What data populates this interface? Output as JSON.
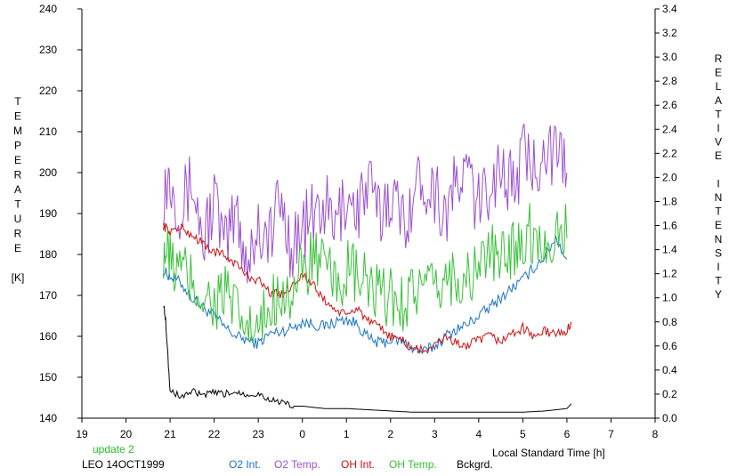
{
  "chart_data": {
    "type": "line",
    "title": "",
    "xlabel": "Local Standard Time [h]",
    "ylabel_left": [
      "T",
      "E",
      "M",
      "P",
      "E",
      "R",
      "A",
      "T",
      "U",
      "R",
      "E",
      "",
      "[K]"
    ],
    "ylabel_right": [
      "R",
      "E",
      "L",
      "A",
      "T",
      "I",
      "V",
      "E",
      "",
      "I",
      "N",
      "T",
      "E",
      "N",
      "S",
      "I",
      "T",
      "Y"
    ],
    "x_range": [
      19,
      32
    ],
    "x_ticks": [
      19,
      20,
      21,
      22,
      23,
      24,
      25,
      26,
      27,
      28,
      29,
      30,
      31,
      32
    ],
    "x_tick_labels": [
      "19",
      "20",
      "21",
      "22",
      "23",
      "0",
      "1",
      "2",
      "3",
      "4",
      "5",
      "6",
      "7",
      "8"
    ],
    "ylim_left": [
      140,
      240
    ],
    "y_left_ticks": [
      "140",
      "150",
      "160",
      "170",
      "180",
      "190",
      "200",
      "210",
      "220",
      "230",
      "240"
    ],
    "ylim_right": [
      0.0,
      3.4
    ],
    "y_right_ticks": [
      "0.0",
      "0.2",
      "0.4",
      "0.6",
      "0.8",
      "1.0",
      "1.2",
      "1.4",
      "1.6",
      "1.8",
      "2.0",
      "2.2",
      "2.4",
      "2.6",
      "2.8",
      "3.0",
      "3.2",
      "3.4"
    ],
    "grid": false,
    "legend_position": "bottom",
    "series": [
      {
        "name": "O2 Int.",
        "axis": "right",
        "color": "#1a73c8",
        "x": [
          20.85,
          21.0,
          21.25,
          21.5,
          21.75,
          22.0,
          22.25,
          22.5,
          22.75,
          23.0,
          23.25,
          23.5,
          23.75,
          24.0,
          24.25,
          24.5,
          24.75,
          25.0,
          25.25,
          25.5,
          25.75,
          26.0,
          26.25,
          26.5,
          26.75,
          27.0,
          27.25,
          27.5,
          27.75,
          28.0,
          28.25,
          28.5,
          28.75,
          29.0,
          29.25,
          29.5,
          29.75,
          30.0
        ],
        "y": [
          1.22,
          1.18,
          1.12,
          1.0,
          0.92,
          0.85,
          0.75,
          0.68,
          0.65,
          0.62,
          0.7,
          0.72,
          0.75,
          0.8,
          0.78,
          0.76,
          0.8,
          0.82,
          0.78,
          0.66,
          0.62,
          0.65,
          0.64,
          0.58,
          0.55,
          0.6,
          0.68,
          0.74,
          0.78,
          0.85,
          0.92,
          1.0,
          1.08,
          1.15,
          1.25,
          1.35,
          1.5,
          1.32
        ]
      },
      {
        "name": "O2 Temp.",
        "axis": "left",
        "color": "#9b4fd0",
        "x": [
          20.85,
          21.0,
          21.25,
          21.5,
          21.75,
          22.0,
          22.25,
          22.5,
          22.75,
          23.0,
          23.25,
          23.5,
          23.75,
          24.0,
          24.25,
          24.5,
          24.75,
          25.0,
          25.25,
          25.5,
          25.75,
          26.0,
          26.25,
          26.5,
          26.75,
          27.0,
          27.25,
          27.5,
          27.75,
          28.0,
          28.25,
          28.5,
          28.75,
          29.0,
          29.25,
          29.5,
          29.75,
          30.0
        ],
        "y": [
          196,
          200,
          191,
          198,
          183,
          194,
          181,
          191,
          178,
          187,
          184,
          193,
          182,
          186,
          189,
          192,
          186,
          195,
          191,
          197,
          189,
          196,
          188,
          194,
          199,
          196,
          190,
          197,
          200,
          191,
          198,
          202,
          196,
          204,
          201,
          208,
          203,
          200
        ]
      },
      {
        "name": "OH Int.",
        "axis": "right",
        "color": "#d01010",
        "x": [
          20.85,
          21.0,
          21.25,
          21.5,
          21.75,
          22.0,
          22.25,
          22.5,
          22.75,
          23.0,
          23.25,
          23.5,
          23.75,
          24.0,
          24.25,
          24.5,
          24.75,
          25.0,
          25.25,
          25.5,
          25.75,
          26.0,
          26.25,
          26.5,
          26.75,
          27.0,
          27.25,
          27.5,
          27.75,
          28.0,
          28.25,
          28.5,
          28.75,
          29.0,
          29.25,
          29.5,
          29.75,
          30.0,
          30.1
        ],
        "y": [
          1.6,
          1.55,
          1.58,
          1.52,
          1.45,
          1.38,
          1.35,
          1.28,
          1.18,
          1.15,
          1.05,
          1.02,
          1.1,
          1.2,
          1.1,
          0.98,
          0.9,
          0.85,
          0.92,
          0.8,
          0.75,
          0.68,
          0.65,
          0.58,
          0.56,
          0.6,
          0.68,
          0.62,
          0.6,
          0.65,
          0.68,
          0.64,
          0.7,
          0.75,
          0.68,
          0.72,
          0.7,
          0.72,
          0.8
        ]
      },
      {
        "name": "OH Temp.",
        "axis": "left",
        "color": "#38c038",
        "x": [
          20.85,
          21.0,
          21.25,
          21.5,
          21.75,
          22.0,
          22.25,
          22.5,
          22.75,
          23.0,
          23.25,
          23.5,
          23.75,
          24.0,
          24.25,
          24.5,
          24.75,
          25.0,
          25.25,
          25.5,
          25.75,
          26.0,
          26.25,
          26.5,
          26.75,
          27.0,
          27.25,
          27.5,
          27.75,
          28.0,
          28.25,
          28.5,
          28.75,
          29.0,
          29.25,
          29.5,
          29.75,
          30.0
        ],
        "y": [
          182,
          178,
          176,
          173,
          170,
          168,
          171,
          165,
          162,
          160,
          167,
          172,
          170,
          175,
          180,
          176,
          172,
          176,
          174,
          172,
          169,
          170,
          168,
          172,
          171,
          170,
          174,
          175,
          173,
          178,
          180,
          178,
          182,
          184,
          186,
          181,
          187,
          184
        ]
      },
      {
        "name": "Bckgrd.",
        "axis": "right",
        "color": "#000000",
        "x": [
          20.85,
          20.9,
          21.0,
          21.25,
          21.5,
          21.75,
          22.0,
          22.25,
          22.5,
          22.75,
          23.0,
          23.25,
          23.5,
          23.75,
          24.0,
          24.5,
          25.0,
          25.5,
          26.0,
          26.5,
          27.0,
          27.5,
          28.0,
          28.5,
          29.0,
          29.5,
          30.0,
          30.1
        ],
        "y": [
          0.95,
          0.82,
          0.22,
          0.18,
          0.22,
          0.19,
          0.21,
          0.2,
          0.22,
          0.2,
          0.2,
          0.16,
          0.13,
          0.1,
          0.1,
          0.08,
          0.08,
          0.07,
          0.06,
          0.05,
          0.05,
          0.05,
          0.05,
          0.05,
          0.05,
          0.06,
          0.08,
          0.12
        ]
      }
    ],
    "annotations": [
      "update 2",
      "LEO 14OCT1999"
    ],
    "colors": {
      "update_label": "#22c022",
      "axis": "#000000"
    }
  }
}
